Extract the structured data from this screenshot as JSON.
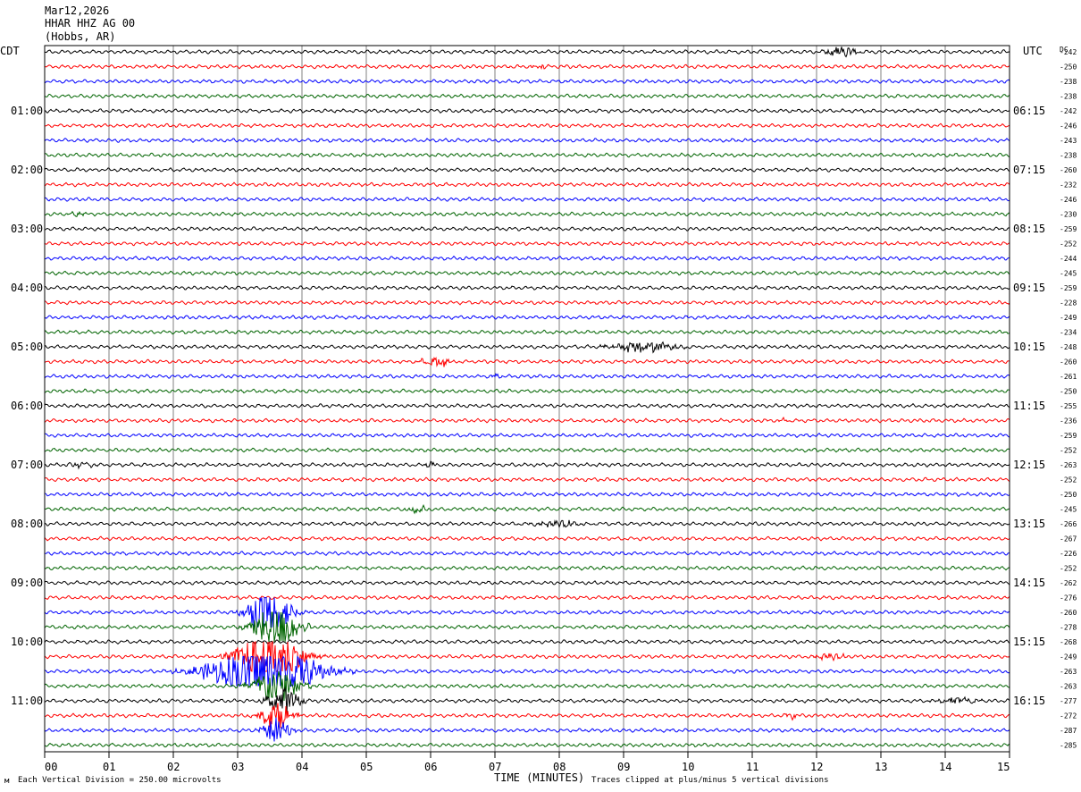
{
  "header": {
    "date": "Mar12,2026",
    "station": "HHAR HHZ AG 00",
    "location": "(Hobbs, AR)"
  },
  "left_tz": "CDT",
  "right_tz": "UTC",
  "dc_label": "DC",
  "footer": {
    "scale_note": "Each Vertical Division =  250.00 microvolts",
    "xlabel": "TIME (MINUTES)",
    "clip_note": "Traces clipped at plus/minus 5 vertical divisions",
    "corner_mark": "м"
  },
  "colors": {
    "cycle": [
      "#000000",
      "#ff0000",
      "#0000ff",
      "#006400"
    ],
    "grid": "#808080",
    "frame": "#000000"
  },
  "chart_data": {
    "type": "line",
    "subtype": "helicorder",
    "xlabel": "TIME (MINUTES)",
    "xlim": [
      0,
      15
    ],
    "x_ticks": [
      "00",
      "01",
      "02",
      "03",
      "04",
      "05",
      "06",
      "07",
      "08",
      "09",
      "10",
      "11",
      "12",
      "13",
      "14",
      "15"
    ],
    "rows_per_hour": 4,
    "row_count": 48,
    "left_hour_labels": [
      "01:00",
      "02:00",
      "03:00",
      "04:00",
      "05:00",
      "06:00",
      "07:00",
      "08:00",
      "09:00",
      "10:00",
      "11:00"
    ],
    "right_hour_labels": [
      "06:15",
      "07:15",
      "08:15",
      "09:15",
      "10:15",
      "11:15",
      "12:15",
      "13:15",
      "14:15",
      "15:15",
      "16:15"
    ],
    "dc_offsets": [
      -242,
      -250,
      -238,
      -238,
      -242,
      -246,
      -243,
      -238,
      -260,
      -232,
      -246,
      -230,
      -259,
      -252,
      -244,
      -245,
      -259,
      -228,
      -249,
      -234,
      -248,
      -260,
      -261,
      -250,
      -255,
      -236,
      -259,
      -252,
      -263,
      -252,
      -250,
      -245,
      -266,
      -267,
      -226,
      -252,
      -262,
      -276,
      -260,
      -278,
      -268,
      -249,
      -263,
      -263,
      -277,
      -272,
      -287,
      -285
    ],
    "events": [
      {
        "row": 0,
        "minute": 12.4,
        "amplitude": 0.9,
        "duration_min": 0.5
      },
      {
        "row": 1,
        "minute": 7.7,
        "amplitude": 0.4,
        "duration_min": 0.3
      },
      {
        "row": 11,
        "minute": 0.5,
        "amplitude": 0.35,
        "duration_min": 0.4
      },
      {
        "row": 20,
        "minute": 9.3,
        "amplitude": 1.0,
        "duration_min": 1.2
      },
      {
        "row": 21,
        "minute": 6.1,
        "amplitude": 0.8,
        "duration_min": 0.6
      },
      {
        "row": 22,
        "minute": 7.0,
        "amplitude": 0.4,
        "duration_min": 0.2
      },
      {
        "row": 25,
        "minute": 11.5,
        "amplitude": 0.3,
        "duration_min": 0.2
      },
      {
        "row": 28,
        "minute": 0.6,
        "amplitude": 0.4,
        "duration_min": 0.5
      },
      {
        "row": 28,
        "minute": 6.0,
        "amplitude": 0.5,
        "duration_min": 0.2
      },
      {
        "row": 31,
        "minute": 5.8,
        "amplitude": 0.8,
        "duration_min": 0.4
      },
      {
        "row": 32,
        "minute": 8.0,
        "amplitude": 0.5,
        "duration_min": 1.0
      },
      {
        "row": 38,
        "minute": 3.5,
        "amplitude": 5.0,
        "duration_min": 0.8
      },
      {
        "row": 39,
        "minute": 3.6,
        "amplitude": 5.0,
        "duration_min": 0.8
      },
      {
        "row": 41,
        "minute": 3.5,
        "amplitude": 5.0,
        "duration_min": 1.2
      },
      {
        "row": 41,
        "minute": 12.2,
        "amplitude": 0.5,
        "duration_min": 0.6
      },
      {
        "row": 42,
        "minute": 3.4,
        "amplitude": 5.0,
        "duration_min": 2.0
      },
      {
        "row": 43,
        "minute": 3.6,
        "amplitude": 3.5,
        "duration_min": 0.9
      },
      {
        "row": 44,
        "minute": 3.7,
        "amplitude": 2.5,
        "duration_min": 0.6
      },
      {
        "row": 44,
        "minute": 14.2,
        "amplitude": 0.6,
        "duration_min": 0.8
      },
      {
        "row": 45,
        "minute": 3.6,
        "amplitude": 2.5,
        "duration_min": 0.6
      },
      {
        "row": 45,
        "minute": 11.6,
        "amplitude": 0.7,
        "duration_min": 0.2
      },
      {
        "row": 46,
        "minute": 3.6,
        "amplitude": 2.5,
        "duration_min": 0.5
      }
    ]
  }
}
